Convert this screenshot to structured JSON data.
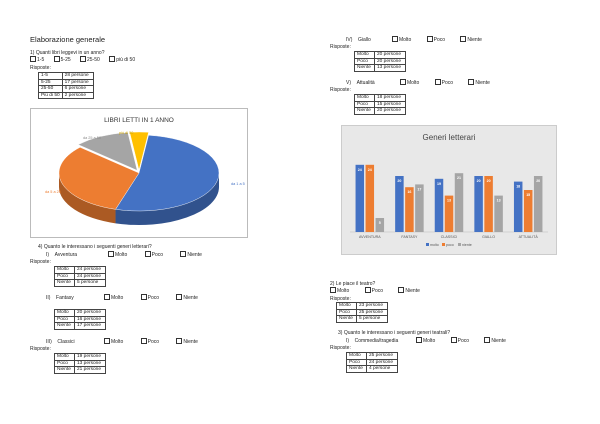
{
  "heading": "Elaborazione generale",
  "q1": {
    "question": "1)   Quanti libri leggevi in un anno?",
    "options": [
      "1-5",
      "5-25",
      "25-50",
      "più di 50"
    ],
    "answers_label": "Risposte:",
    "rows": [
      [
        "1-5",
        "28 persone"
      ],
      [
        "5-25",
        "17 persone"
      ],
      [
        "25-50",
        "6 persone"
      ],
      [
        "Più di 50",
        "2 persone"
      ]
    ]
  },
  "pie": {
    "title": "LIBRI LETTI IN 1 ANNO",
    "labels": [
      "da 1 a 5",
      "da 5 a 25",
      "da 25 a 50",
      "più di 50"
    ]
  },
  "q4": {
    "question": "4)   Quanto le interessano i seguenti generi letterari?",
    "answers_label": "Risposte:",
    "genres": [
      {
        "num": "I)",
        "name": "Avventura",
        "rows": [
          [
            "Molto",
            "24 persone"
          ],
          [
            "Poco",
            "24 persone"
          ],
          [
            "Niente",
            "5 persone"
          ]
        ]
      },
      {
        "num": "II)",
        "name": "Fantasy",
        "rows": [
          [
            "Molto",
            "20 persone"
          ],
          [
            "Poco",
            "16 persone"
          ],
          [
            "Niente",
            "17 persone"
          ]
        ]
      },
      {
        "num": "III)",
        "name": "Classici",
        "rows": [
          [
            "Molto",
            "19 persone"
          ],
          [
            "Poco",
            "13 persone"
          ],
          [
            "Niente",
            "21 persone"
          ]
        ]
      },
      {
        "num": "IV)",
        "name": "Giallo",
        "rows": [
          [
            "Molto",
            "20 persone"
          ],
          [
            "Poco",
            "20 persone"
          ],
          [
            "Niente",
            "13 persone"
          ]
        ]
      },
      {
        "num": "V)",
        "name": "Attualità",
        "rows": [
          [
            "Molto",
            "18 persone"
          ],
          [
            "Poco",
            "15 persone"
          ],
          [
            "Niente",
            "20 persone"
          ]
        ]
      }
    ],
    "scale": [
      "Molto",
      "Poco",
      "Niente"
    ]
  },
  "q2": {
    "question": "2)   Le piace il teatro?",
    "options": [
      "Molto",
      "Poco",
      "Niente"
    ],
    "answers_label": "Risposte:",
    "rows": [
      [
        "Molto",
        "23 persone"
      ],
      [
        "Poco",
        "25 persone"
      ],
      [
        "Niente",
        "5 persone"
      ]
    ]
  },
  "q3": {
    "question": "3)   Quanto le interessano i seguenti generi teatrali?",
    "genre": {
      "num": "I)",
      "name": "Commedia/tragedia"
    },
    "scale": [
      "Molto",
      "Poco",
      "Niente"
    ],
    "answers_label": "Risposte:",
    "rows": [
      [
        "Molto",
        "25 persone"
      ],
      [
        "Poco",
        "24 persone"
      ],
      [
        "Niente",
        "4 persone"
      ]
    ]
  },
  "chart_data": [
    {
      "type": "pie",
      "title": "LIBRI LETTI IN 1 ANNO",
      "categories": [
        "da 1 a 5",
        "da 5 a 25",
        "da 25 a 50",
        "più di 50"
      ],
      "values": [
        28,
        17,
        6,
        2
      ],
      "colors": [
        "#4472c4",
        "#ed7d31",
        "#a5a5a5",
        "#ffc000"
      ]
    },
    {
      "type": "bar",
      "title": "Generi letterari",
      "categories": [
        "AVVENTURA",
        "FANTASY",
        "CLASSICI",
        "GIALLO",
        "ATTUALITÀ"
      ],
      "series": [
        {
          "name": "molto",
          "values": [
            24,
            20,
            19,
            20,
            18
          ],
          "color": "#4472c4"
        },
        {
          "name": "poco",
          "values": [
            24,
            16,
            13,
            20,
            15
          ],
          "color": "#ed7d31"
        },
        {
          "name": "niente",
          "values": [
            5,
            17,
            21,
            13,
            20
          ],
          "color": "#a5a5a5"
        }
      ],
      "legend": "bottom"
    }
  ]
}
